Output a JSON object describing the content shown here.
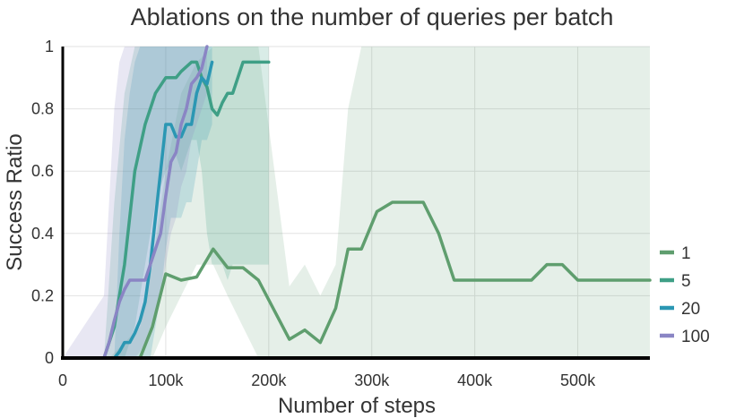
{
  "chart_data": {
    "type": "line",
    "title": "Ablations on the number of queries per batch",
    "xlabel": "Number of steps",
    "ylabel": "Success Ratio",
    "xlim": [
      0,
      570000
    ],
    "ylim": [
      0,
      1
    ],
    "x_ticks": [
      0,
      100000,
      200000,
      300000,
      400000,
      500000
    ],
    "x_tick_labels": [
      "0",
      "100k",
      "200k",
      "300k",
      "400k",
      "500k"
    ],
    "y_ticks": [
      0,
      0.2,
      0.4,
      0.6,
      0.8,
      1
    ],
    "y_tick_labels": [
      "0",
      "0.2",
      "0.4",
      "0.6",
      "0.8",
      "1"
    ],
    "grid": true,
    "legend_position": "right",
    "series": [
      {
        "name": "1",
        "color": "#5f9e6e",
        "x": [
          0,
          45000,
          75000,
          87000,
          100000,
          115000,
          130000,
          146000,
          160000,
          175000,
          190000,
          220000,
          235000,
          250000,
          265000,
          277000,
          290000,
          305000,
          320000,
          335000,
          350000,
          365000,
          380000,
          395000,
          410000,
          425000,
          440000,
          455000,
          470000,
          485000,
          500000,
          570000
        ],
        "y": [
          0,
          0,
          0,
          0.1,
          0.27,
          0.25,
          0.26,
          0.35,
          0.29,
          0.29,
          0.25,
          0.06,
          0.09,
          0.05,
          0.16,
          0.35,
          0.35,
          0.47,
          0.5,
          0.5,
          0.5,
          0.4,
          0.25,
          0.25,
          0.25,
          0.25,
          0.25,
          0.25,
          0.3,
          0.3,
          0.25,
          0.25
        ],
        "band_low": [
          0,
          0,
          0,
          0,
          0.1,
          0.2,
          0.3,
          0.3,
          0.2,
          0.1,
          0,
          0,
          0,
          0,
          0,
          0,
          0,
          0,
          0,
          0,
          0,
          0,
          0,
          0,
          0,
          0,
          0,
          0,
          0,
          0,
          0,
          0
        ],
        "band_high": [
          0,
          0,
          0.1,
          0.3,
          0.6,
          0.85,
          0.95,
          1,
          1,
          1,
          1,
          0.23,
          0.3,
          0.2,
          0.3,
          0.8,
          1,
          1,
          1,
          1,
          1,
          1,
          1,
          1,
          1,
          1,
          1,
          1,
          1,
          1,
          1,
          1
        ]
      },
      {
        "name": "5",
        "color": "#3f9f86",
        "x": [
          0,
          40000,
          50000,
          60000,
          70000,
          80000,
          90000,
          100000,
          110000,
          115000,
          125000,
          130000,
          135000,
          140000,
          145000,
          150000,
          155000,
          160000,
          165000,
          175000,
          200000
        ],
        "y": [
          0,
          0,
          0.1,
          0.3,
          0.6,
          0.75,
          0.85,
          0.9,
          0.9,
          0.92,
          0.95,
          0.95,
          0.9,
          0.87,
          0.8,
          0.78,
          0.82,
          0.85,
          0.85,
          0.95,
          0.95
        ],
        "band_low": [
          0,
          0,
          0,
          0,
          0.1,
          0.3,
          0.5,
          0.6,
          0.65,
          0.6,
          0.7,
          0.7,
          0.6,
          0.4,
          0.3,
          0.3,
          0.3,
          0.25,
          0.3,
          0.3,
          0.3
        ],
        "band_high": [
          0,
          0,
          0.5,
          0.85,
          1,
          1,
          1,
          1,
          1,
          1,
          1,
          1,
          1,
          1,
          1,
          1,
          1,
          1,
          1,
          1,
          1
        ]
      },
      {
        "name": "20",
        "color": "#2b97b3",
        "x": [
          0,
          50000,
          55000,
          60000,
          65000,
          70000,
          75000,
          80000,
          85000,
          90000,
          95000,
          100000,
          105000,
          110000,
          115000,
          120000,
          125000,
          130000,
          135000,
          140000,
          145000
        ],
        "y": [
          0,
          0,
          0.02,
          0.05,
          0.05,
          0.08,
          0.12,
          0.18,
          0.3,
          0.45,
          0.6,
          0.75,
          0.75,
          0.71,
          0.71,
          0.75,
          0.75,
          0.85,
          0.9,
          0.88,
          0.95
        ],
        "band_low": [
          0,
          0,
          0,
          0,
          0,
          0,
          0,
          0,
          0,
          0.1,
          0.2,
          0.35,
          0.45,
          0.45,
          0.45,
          0.5,
          0.5,
          0.6,
          0.7,
          0.7,
          0.75
        ],
        "band_high": [
          0,
          0,
          0.4,
          0.7,
          0.85,
          0.95,
          1,
          1,
          1,
          1,
          1,
          1,
          1,
          1,
          1,
          1,
          1,
          1,
          1,
          1,
          1
        ]
      },
      {
        "name": "100",
        "color": "#8a85c4",
        "x": [
          0,
          40000,
          45000,
          50000,
          55000,
          60000,
          65000,
          70000,
          75000,
          80000,
          85000,
          90000,
          95000,
          100000,
          105000,
          110000,
          115000,
          120000,
          125000,
          130000,
          135000,
          140000
        ],
        "y": [
          0,
          0,
          0.05,
          0.12,
          0.18,
          0.22,
          0.25,
          0.25,
          0.25,
          0.25,
          0.3,
          0.35,
          0.4,
          0.52,
          0.63,
          0.66,
          0.75,
          0.8,
          0.88,
          0.9,
          0.93,
          1
        ],
        "band_low": [
          0,
          0,
          0,
          0,
          0,
          0,
          0,
          0,
          0.02,
          0.05,
          0.1,
          0.15,
          0.2,
          0.3,
          0.4,
          0.45,
          0.55,
          0.6,
          0.7,
          0.75,
          0.8,
          0.85
        ],
        "band_high": [
          0,
          0.2,
          0.5,
          0.8,
          0.95,
          1,
          1,
          1,
          1,
          1,
          1,
          1,
          1,
          1,
          1,
          1,
          1,
          1,
          1,
          1,
          1,
          1
        ]
      }
    ]
  }
}
